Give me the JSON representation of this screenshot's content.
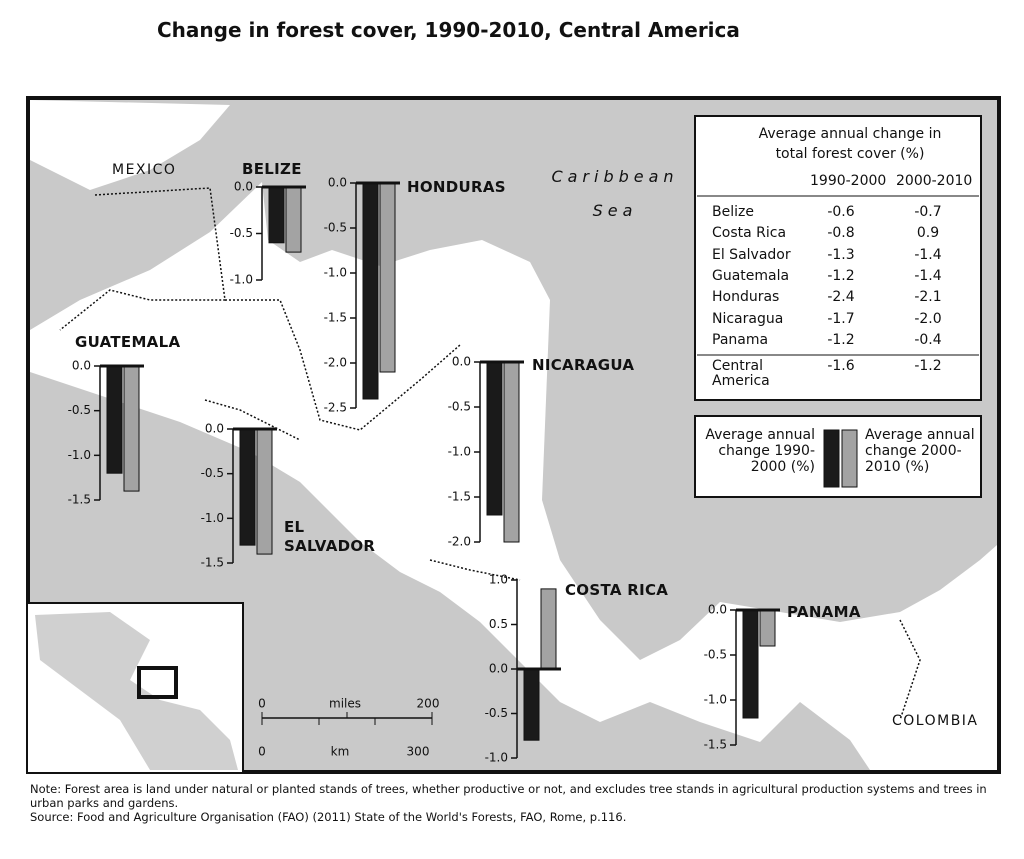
{
  "title": "Change in forest cover, 1990-2010, Central America",
  "legend": [
    {
      "name": "Average annual change 1990-2000 (%)",
      "color": "#1a1a1a"
    },
    {
      "name": "Average annual change 2000-2010 (%)",
      "color": "#a3a3a3"
    }
  ],
  "chart_data": [
    {
      "type": "bar",
      "title": "BELIZE",
      "series": [
        {
          "values": [
            -0.6
          ]
        },
        {
          "values": [
            -0.7
          ]
        }
      ],
      "ylim": [
        -1.0,
        0
      ],
      "yticks": [
        {
          "value": 0,
          "label": "0.0"
        },
        -0.5,
        {
          "value": -1.0,
          "label": "-1.0"
        }
      ]
    },
    {
      "type": "bar",
      "title": "HONDURAS",
      "series": [
        {
          "values": [
            -2.4
          ]
        },
        {
          "values": [
            -2.1
          ]
        }
      ],
      "ylim": [
        -2.5,
        0
      ],
      "yticks": [
        {
          "value": 0,
          "label": "0.0"
        },
        -0.5,
        {
          "value": -1.0,
          "label": "-1.0"
        },
        -1.5,
        {
          "value": -2.0,
          "label": "-2.0"
        },
        -2.5
      ]
    },
    {
      "type": "bar",
      "title": "GUATEMALA",
      "series": [
        {
          "values": [
            -1.2
          ]
        },
        {
          "values": [
            -1.4
          ]
        }
      ],
      "ylim": [
        -1.5,
        0
      ],
      "yticks": [
        {
          "value": 0,
          "label": "0.0"
        },
        -0.5,
        {
          "value": -1.0,
          "label": "-1.0"
        },
        -1.5
      ]
    },
    {
      "type": "bar",
      "title": "EL SALVADOR",
      "series": [
        {
          "values": [
            -1.3
          ]
        },
        {
          "values": [
            -1.4
          ]
        }
      ],
      "ylim": [
        -1.5,
        0
      ],
      "yticks": [
        {
          "value": 0,
          "label": "0.0"
        },
        -0.5,
        {
          "value": -1.0,
          "label": "-1.0"
        },
        -1.5
      ]
    },
    {
      "type": "bar",
      "title": "NICARAGUA",
      "series": [
        {
          "values": [
            -1.7
          ]
        },
        {
          "values": [
            -2.0
          ]
        }
      ],
      "ylim": [
        -2.0,
        0
      ],
      "yticks": [
        {
          "value": 0,
          "label": "0.0"
        },
        -0.5,
        {
          "value": -1.0,
          "label": "-1.0"
        },
        -1.5,
        {
          "value": -2.0,
          "label": "-2.0"
        }
      ]
    },
    {
      "type": "bar",
      "title": "COSTA RICA",
      "series": [
        {
          "values": [
            -0.8
          ]
        },
        {
          "values": [
            0.9
          ]
        }
      ],
      "ylim": [
        -1.0,
        1.0
      ],
      "yticks": [
        {
          "value": 1.0,
          "label": "1.0"
        },
        0.5,
        {
          "value": 0,
          "label": "0.0"
        },
        -0.5,
        {
          "value": -1.0,
          "label": "-1.0"
        }
      ]
    },
    {
      "type": "bar",
      "title": "PANAMA",
      "series": [
        {
          "values": [
            -1.2
          ]
        },
        {
          "values": [
            -0.4
          ]
        }
      ],
      "ylim": [
        -1.5,
        0
      ],
      "yticks": [
        {
          "value": 0,
          "label": "0.0"
        },
        -0.5,
        {
          "value": -1.0,
          "label": "-1.0"
        },
        -1.5
      ]
    }
  ],
  "table": {
    "header": "Average annual change in total forest cover (%)",
    "columns": [
      "1990-2000",
      "2000-2010"
    ],
    "rows": [
      [
        "Belize",
        "-0.6",
        "-0.7"
      ],
      [
        "Costa Rica",
        "-0.8",
        "0.9"
      ],
      [
        "El Salvador",
        "-1.3",
        "-1.4"
      ],
      [
        "Guatemala",
        "-1.2",
        "-1.4"
      ],
      [
        "Honduras",
        "-2.4",
        "-2.1"
      ],
      [
        "Nicaragua",
        "-1.7",
        "-2.0"
      ],
      [
        "Panama",
        "-1.2",
        "-0.4"
      ]
    ],
    "total": [
      "Central America",
      "-1.6",
      "-1.2"
    ]
  },
  "map_labels": {
    "mexico": "MEXICO",
    "sea": "Caribbean Sea",
    "colombia": "COLOMBIA"
  },
  "scale": {
    "miles_unit": "miles",
    "km_unit": "km",
    "miles": [
      0,
      200
    ],
    "km": [
      0,
      300
    ]
  },
  "note": "Note: Forest area is land under natural or planted stands of trees, whether productive or not, and excludes tree stands in agricultural production systems and trees in urban parks and gardens.",
  "source": "Source: Food and Agriculture Organisation (FAO) (2011) State of the World's Forests, FAO, Rome, p.116."
}
